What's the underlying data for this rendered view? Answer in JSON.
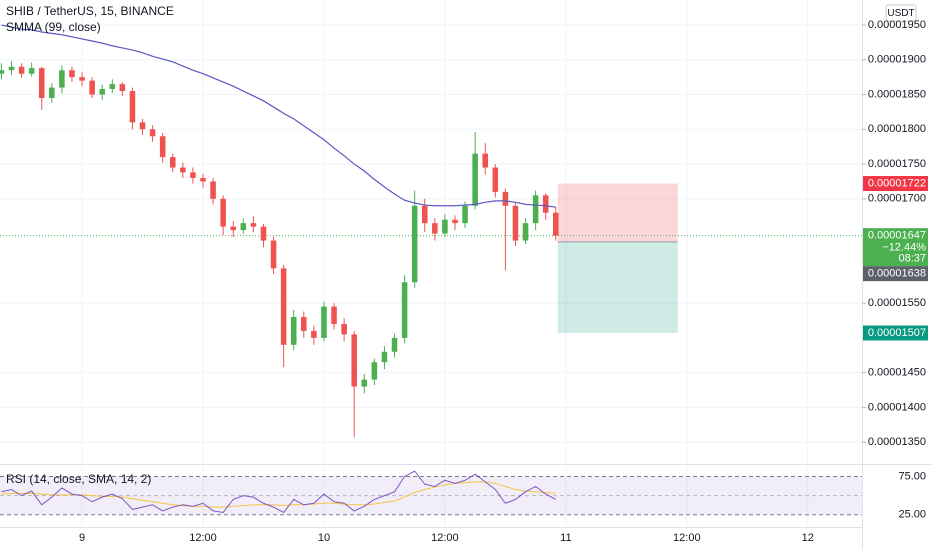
{
  "chart_data": [
    {
      "type": "candlestick",
      "title": "SHIB / TetherUS, 15, BINANCE",
      "currency": "USDT",
      "up_color": "#4caf50",
      "down_color": "#ef5350",
      "grid": true,
      "xlim": [
        -0.14,
        85.38
      ],
      "xticks": [
        {
          "value": 8,
          "label": "9"
        },
        {
          "value": 20,
          "label": "12:00"
        },
        {
          "value": 32,
          "label": "10"
        },
        {
          "value": 44,
          "label": "12:00"
        },
        {
          "value": 56,
          "label": "11"
        },
        {
          "value": 68,
          "label": "12:00"
        },
        {
          "value": 80,
          "label": "12"
        }
      ],
      "ylim": [
        1.32e-05,
        1.986e-05
      ],
      "yticks": [
        {
          "value": 1.35e-05,
          "label": "0.00001350"
        },
        {
          "value": 1.4e-05,
          "label": "0.00001400"
        },
        {
          "value": 1.45e-05,
          "label": "0.00001450"
        },
        {
          "value": 1.55e-05,
          "label": "0.00001550"
        },
        {
          "value": 1.7e-05,
          "label": "0.00001700"
        },
        {
          "value": 1.75e-05,
          "label": "0.00001750"
        },
        {
          "value": 1.8e-05,
          "label": "0.00001800"
        },
        {
          "value": 1.85e-05,
          "label": "0.00001850"
        },
        {
          "value": 1.9e-05,
          "label": "0.00001900"
        },
        {
          "value": 1.95e-05,
          "label": "0.00001950"
        }
      ],
      "open": [
        1.88e-05,
        1.885e-05,
        1.89e-05,
        1.88e-05,
        1.888e-05,
        1.845e-05,
        1.86e-05,
        1.885e-05,
        1.875e-05,
        1.87e-05,
        1.85e-05,
        1.858e-05,
        1.865e-05,
        1.855e-05,
        1.81e-05,
        1.8e-05,
        1.79e-05,
        1.76e-05,
        1.745e-05,
        1.738e-05,
        1.73e-05,
        1.725e-05,
        1.7e-05,
        1.66e-05,
        1.655e-05,
        1.665e-05,
        1.66e-05,
        1.64e-05,
        1.6e-05,
        1.49e-05,
        1.53e-05,
        1.51e-05,
        1.5e-05,
        1.545e-05,
        1.52e-05,
        1.505e-05,
        1.43e-05,
        1.44e-05,
        1.465e-05,
        1.48e-05,
        1.5e-05,
        1.58e-05,
        1.69e-05,
        1.665e-05,
        1.65e-05,
        1.67e-05,
        1.665e-05,
        1.69e-05,
        1.765e-05,
        1.745e-05,
        1.71e-05,
        1.69e-05,
        1.64e-05,
        1.665e-05,
        1.705e-05,
        1.68e-05
      ],
      "high": [
        1.895e-05,
        1.898e-05,
        1.895e-05,
        1.896e-05,
        1.89e-05,
        1.866e-05,
        1.892e-05,
        1.89e-05,
        1.882e-05,
        1.875e-05,
        1.864e-05,
        1.872e-05,
        1.868e-05,
        1.86e-05,
        1.815e-05,
        1.806e-05,
        1.795e-05,
        1.765e-05,
        1.752e-05,
        1.745e-05,
        1.736e-05,
        1.73e-05,
        1.705e-05,
        1.668e-05,
        1.672e-05,
        1.675e-05,
        1.664e-05,
        1.646e-05,
        1.605e-05,
        1.54e-05,
        1.538e-05,
        1.518e-05,
        1.552e-05,
        1.55e-05,
        1.528e-05,
        1.51e-05,
        1.448e-05,
        1.47e-05,
        1.488e-05,
        1.506e-05,
        1.59e-05,
        1.712e-05,
        1.7e-05,
        1.672e-05,
        1.678e-05,
        1.676e-05,
        1.696e-05,
        1.796e-05,
        1.78e-05,
        1.75e-05,
        1.715e-05,
        1.695e-05,
        1.672e-05,
        1.712e-05,
        1.708e-05,
        1.688e-05
      ],
      "low": [
        1.872e-05,
        1.878e-05,
        1.874e-05,
        1.876e-05,
        1.828e-05,
        1.838e-05,
        1.852e-05,
        1.868e-05,
        1.862e-05,
        1.845e-05,
        1.842e-05,
        1.852e-05,
        1.848e-05,
        1.8e-05,
        1.792e-05,
        1.782e-05,
        1.752e-05,
        1.738e-05,
        1.73e-05,
        1.722e-05,
        1.716e-05,
        1.692e-05,
        1.648e-05,
        1.645e-05,
        1.65e-05,
        1.652e-05,
        1.63e-05,
        1.592e-05,
        1.458e-05,
        1.482e-05,
        1.5e-05,
        1.49e-05,
        1.495e-05,
        1.512e-05,
        1.495e-05,
        1.357e-05,
        1.42e-05,
        1.432e-05,
        1.455e-05,
        1.472e-05,
        1.492e-05,
        1.572e-05,
        1.652e-05,
        1.64e-05,
        1.645e-05,
        1.655e-05,
        1.658e-05,
        1.685e-05,
        1.735e-05,
        1.702e-05,
        1.597e-05,
        1.632e-05,
        1.635e-05,
        1.655e-05,
        1.67e-05,
        1.64e-05
      ],
      "close": [
        1.885e-05,
        1.89e-05,
        1.88e-05,
        1.888e-05,
        1.845e-05,
        1.86e-05,
        1.885e-05,
        1.875e-05,
        1.87e-05,
        1.85e-05,
        1.858e-05,
        1.865e-05,
        1.855e-05,
        1.81e-05,
        1.8e-05,
        1.79e-05,
        1.76e-05,
        1.745e-05,
        1.738e-05,
        1.73e-05,
        1.725e-05,
        1.7e-05,
        1.66e-05,
        1.655e-05,
        1.665e-05,
        1.66e-05,
        1.64e-05,
        1.6e-05,
        1.49e-05,
        1.53e-05,
        1.51e-05,
        1.5e-05,
        1.545e-05,
        1.52e-05,
        1.505e-05,
        1.43e-05,
        1.44e-05,
        1.465e-05,
        1.48e-05,
        1.5e-05,
        1.58e-05,
        1.69e-05,
        1.665e-05,
        1.65e-05,
        1.67e-05,
        1.665e-05,
        1.69e-05,
        1.765e-05,
        1.745e-05,
        1.71e-05,
        1.69e-05,
        1.64e-05,
        1.665e-05,
        1.705e-05,
        1.68e-05,
        1.647e-05
      ],
      "overlay": {
        "name": "SMMA (99, close)",
        "color": "#5b58c4",
        "values": [
          1.95e-05,
          1.947e-05,
          1.944e-05,
          1.943e-05,
          1.94e-05,
          1.938e-05,
          1.936e-05,
          1.933e-05,
          1.93e-05,
          1.927e-05,
          1.924e-05,
          1.92e-05,
          1.917e-05,
          1.914e-05,
          1.91e-05,
          1.905e-05,
          1.901e-05,
          1.897e-05,
          1.891e-05,
          1.885e-05,
          1.88e-05,
          1.874e-05,
          1.868e-05,
          1.862e-05,
          1.855e-05,
          1.848e-05,
          1.841e-05,
          1.832e-05,
          1.823e-05,
          1.815e-05,
          1.805e-05,
          1.795e-05,
          1.785e-05,
          1.773e-05,
          1.762e-05,
          1.75e-05,
          1.74e-05,
          1.728e-05,
          1.717e-05,
          1.707e-05,
          1.698e-05,
          1.694e-05,
          1.691e-05,
          1.69e-05,
          1.69e-05,
          1.69e-05,
          1.691e-05,
          1.692e-05,
          1.695e-05,
          1.697e-05,
          1.697e-05,
          1.695e-05,
          1.692e-05,
          1.691e-05,
          1.69e-05,
          1.688e-05
        ]
      },
      "last_price": {
        "value": 1.647e-05,
        "change": "−12.44%",
        "countdown": "08:37",
        "color": "#4caf50"
      },
      "position": {
        "stop": 1.722e-05,
        "entry": 1.638e-05,
        "target": 1.507e-05,
        "start": 55.2,
        "end": 67.1,
        "stop_color": "#f23645",
        "target_color": "#089981",
        "entry_color": "#5d606b"
      }
    },
    {
      "type": "line",
      "title": "RSI (14, close, SMA, 14, 2)",
      "ylim": [
        9,
        90
      ],
      "yticks": [
        {
          "value": 75,
          "label": "75.00"
        },
        {
          "value": 25,
          "label": "25.00"
        }
      ],
      "midline": 50,
      "band_color": "#7e57c2",
      "series": [
        {
          "color": "#7e57c2",
          "values": [
            55,
            58,
            50,
            56,
            38,
            48,
            60,
            52,
            50,
            42,
            48,
            52,
            46,
            32,
            35,
            38,
            30,
            35,
            38,
            36,
            40,
            30,
            28,
            45,
            50,
            48,
            40,
            35,
            28,
            45,
            38,
            40,
            52,
            42,
            40,
            30,
            36,
            45,
            50,
            55,
            75,
            82,
            65,
            62,
            70,
            66,
            70,
            78,
            68,
            58,
            40,
            45,
            55,
            62,
            52,
            45
          ]
        },
        {
          "color": "#f5c542",
          "values": [
            52,
            53,
            53,
            53,
            52,
            51,
            51,
            51,
            51,
            50,
            49,
            49,
            48,
            46,
            44,
            42,
            40,
            38,
            37,
            36,
            36,
            35,
            35,
            36,
            37,
            38,
            38,
            38,
            37,
            38,
            38,
            39,
            40,
            40,
            39,
            38,
            38,
            39,
            41,
            43,
            48,
            54,
            58,
            61,
            64,
            66,
            67,
            68,
            68,
            66,
            62,
            58,
            56,
            55,
            54,
            53
          ]
        }
      ]
    }
  ]
}
